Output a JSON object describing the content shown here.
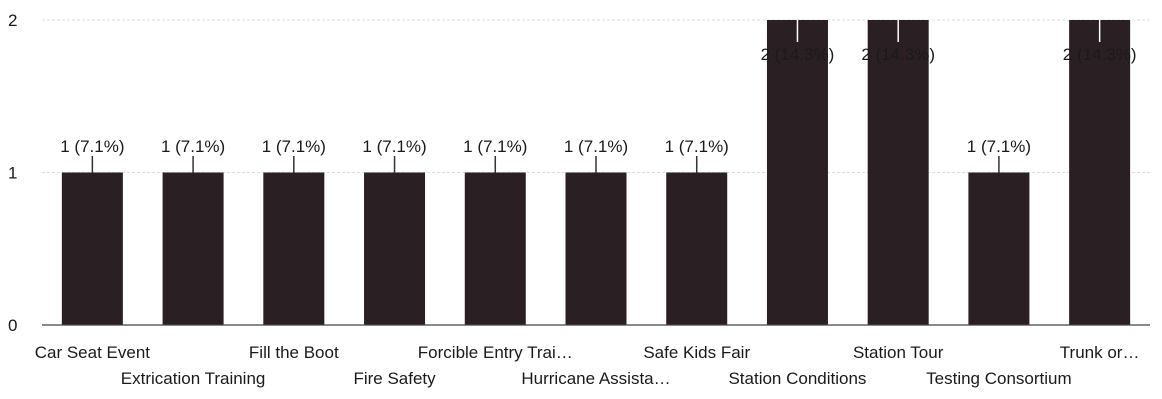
{
  "chart_data": {
    "type": "bar",
    "title": "",
    "xlabel": "",
    "ylabel": "",
    "ylim": [
      0,
      2
    ],
    "yticks": [
      "0",
      "1",
      "2"
    ],
    "grid": true,
    "colors": {
      "bar": "#2a1f22",
      "axis": "#444444",
      "grid": "#dddddd",
      "text": "#1a1a1a"
    },
    "categories": [
      "Car Seat Event",
      "Extrication Training",
      "Fill the Boot",
      "Fire Safety",
      "Forcible Entry Trai…",
      "Hurricane Assista…",
      "Safe Kids Fair",
      "Station Conditions",
      "Station Tour",
      "Testing Consortium",
      "Trunk or…"
    ],
    "values": [
      1,
      1,
      1,
      1,
      1,
      1,
      1,
      2,
      2,
      1,
      2
    ],
    "data_labels": [
      "1 (7.1%)",
      "1 (7.1%)",
      "1 (7.1%)",
      "1 (7.1%)",
      "1 (7.1%)",
      "1 (7.1%)",
      "1 (7.1%)",
      "2 (14.3%)",
      "2 (14.3%)",
      "1 (7.1%)",
      "2 (14.3%)"
    ]
  }
}
